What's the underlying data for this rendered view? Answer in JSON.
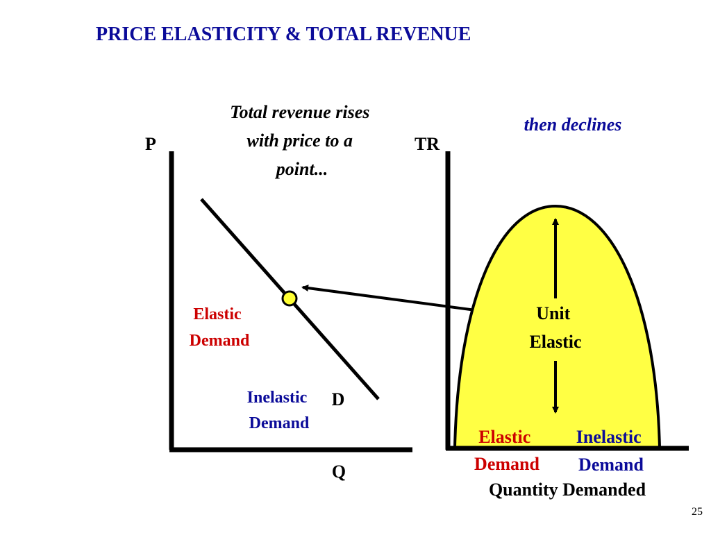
{
  "title": "PRICE ELASTICITY & TOTAL REVENUE",
  "annotations": {
    "rises": [
      "Total revenue rises",
      "with price to a",
      "point..."
    ],
    "declines": "then declines"
  },
  "left_graph": {
    "y_label": "P",
    "x_label": "Q",
    "curve_label": "D",
    "elastic_label": [
      "Elastic",
      "Demand"
    ],
    "inelastic_label": [
      "Inelastic",
      "Demand"
    ]
  },
  "right_graph": {
    "y_label": "TR",
    "x_label": "Quantity Demanded",
    "unit_label": [
      "Unit",
      "Elastic"
    ],
    "elastic_label": [
      "Elastic",
      "Demand"
    ],
    "inelastic_label": [
      "Inelastic",
      "Demand"
    ]
  },
  "slide_number": "25"
}
